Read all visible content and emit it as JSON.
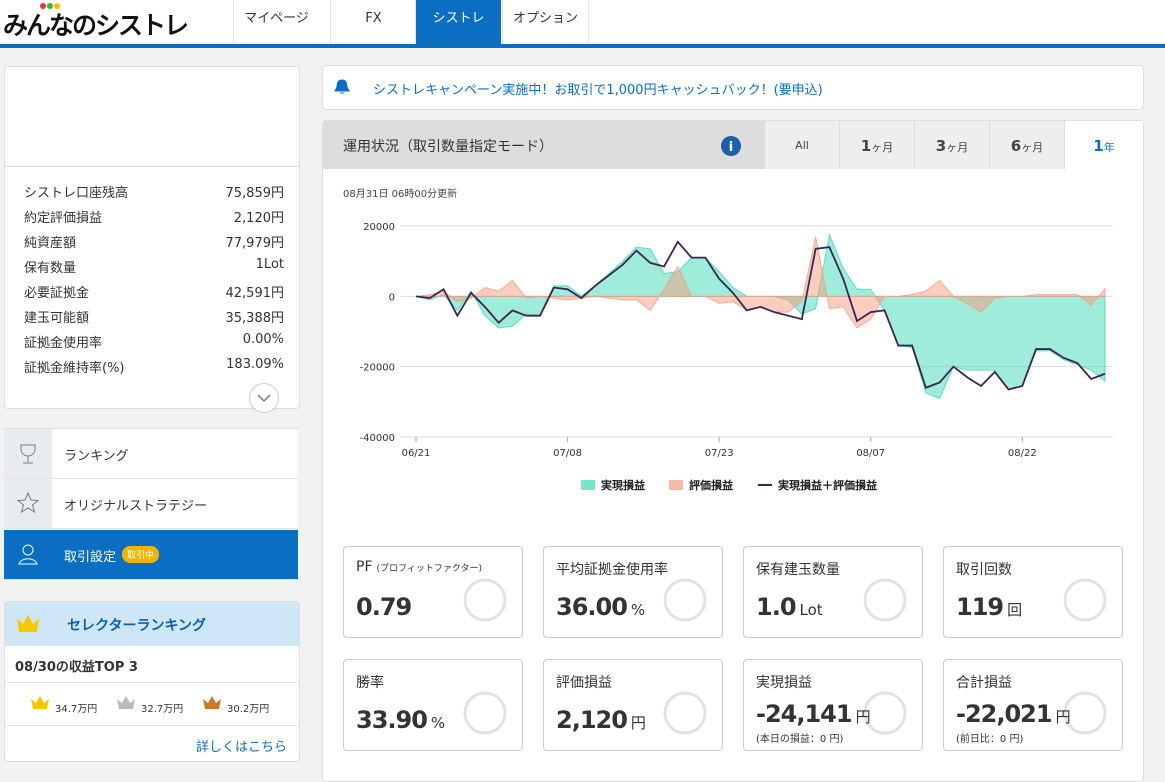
{
  "header": {
    "logo": "みんなのシストレ",
    "nav": [
      "マイページ",
      "FX",
      "シストレ",
      "オプション"
    ]
  },
  "account": {
    "rows": [
      [
        "シストレ口座残高",
        "75,859円"
      ],
      [
        "約定評価損益",
        "2,120円"
      ],
      [
        "純資産額",
        "77,979円"
      ],
      [
        "保有数量",
        "1Lot"
      ],
      [
        "必要証拠金",
        "42,591円"
      ],
      [
        "建玉可能額",
        "35,388円"
      ],
      [
        "証拠金使用率",
        "0.00%"
      ],
      [
        "証拠金維持率(%)",
        "183.09%"
      ]
    ]
  },
  "menu": {
    "items": [
      "ランキング",
      "オリジナルストラテジー",
      "取引設定"
    ],
    "badge": "取引中"
  },
  "selector": {
    "title": "セレクターランキング",
    "subtitle": "08/30の収益TOP 3",
    "prizes": [
      "34.7万円",
      "32.7万円",
      "30.2万円"
    ],
    "link": "詳しくはこちら"
  },
  "notice": "シストレキャンペーン実施中！お取引で1,000円キャッシュバック！(要申込)",
  "panel": {
    "title": "運用状況（取引数量指定モード）",
    "tabs": [
      {
        "num": "All"
      },
      {
        "num": "1",
        "unit": "ヶ月"
      },
      {
        "num": "3",
        "unit": "ヶ月"
      },
      {
        "num": "6",
        "unit": "ヶ月"
      },
      {
        "num": "1",
        "unit": "年"
      }
    ]
  },
  "chart_data": {
    "type": "area",
    "subtitle": "08月31日 06時00分更新",
    "categories": [
      "06/21",
      null,
      null,
      null,
      null,
      null,
      null,
      null,
      null,
      null,
      null,
      "07/08",
      null,
      null,
      null,
      null,
      null,
      null,
      null,
      null,
      null,
      null,
      "07/23",
      null,
      null,
      null,
      null,
      null,
      null,
      null,
      null,
      null,
      null,
      "08/07",
      null,
      null,
      null,
      null,
      null,
      null,
      null,
      null,
      null,
      null,
      "08/22",
      null,
      null,
      null,
      null,
      null,
      null
    ],
    "ylim": [
      -40000,
      20000
    ],
    "yticks": [
      -40000,
      -20000,
      0,
      20000
    ],
    "grid": true,
    "series": [
      {
        "name": "実現損益",
        "color": "#3fd9b6",
        "values": [
          0,
          -1000,
          500,
          -4000,
          1500,
          -5500,
          -9000,
          -8500,
          -5000,
          -5500,
          3000,
          3000,
          0,
          3000,
          6500,
          10000,
          14000,
          13500,
          6500,
          7000,
          11000,
          11000,
          7000,
          2500,
          0,
          0,
          0,
          -1000,
          -5000,
          -3500,
          17500,
          8000,
          2000,
          2000,
          -4000,
          -14000,
          -14500,
          -27500,
          -29000,
          -20000,
          -21000,
          -21000,
          -21000,
          -26500,
          -25500,
          -15500,
          -15500,
          -18000,
          -19500,
          -21000,
          -24141
        ]
      },
      {
        "name": "評価損益",
        "color": "#f59c80",
        "values": [
          0,
          500,
          1500,
          -1500,
          -500,
          2500,
          1500,
          4500,
          -500,
          0,
          -500,
          -1000,
          -500,
          0,
          -500,
          -1000,
          -1000,
          -4000,
          2000,
          8500,
          0,
          0,
          -2000,
          -1500,
          -4000,
          -3000,
          -4500,
          -4500,
          -1500,
          17000,
          -3500,
          -3000,
          -9000,
          -6500,
          0,
          0,
          500,
          1500,
          4500,
          0,
          -2000,
          -4500,
          -500,
          0,
          0,
          500,
          500,
          500,
          500,
          -2500,
          2120
        ]
      },
      {
        "name": "実現損益＋評価損益",
        "color": "#3b2556",
        "line": true,
        "values": [
          0,
          -500,
          2000,
          -5500,
          1000,
          -3000,
          -7500,
          -4000,
          -5500,
          -5500,
          2500,
          2000,
          -500,
          3000,
          6000,
          9000,
          13000,
          9500,
          8500,
          15500,
          11000,
          11000,
          5000,
          1000,
          -4000,
          -3000,
          -4500,
          -5500,
          -6500,
          13500,
          14000,
          5000,
          -7000,
          -4500,
          -4000,
          -14000,
          -14000,
          -26000,
          -24500,
          -20000,
          -23000,
          -25500,
          -21500,
          -26500,
          -25500,
          -15000,
          -15000,
          -17500,
          -19000,
          -23500,
          -22021
        ]
      }
    ]
  },
  "stats": [
    {
      "label": "PF",
      "sub": "(プロフィットファクター)",
      "value": "0.79"
    },
    {
      "label": "平均証拠金使用率",
      "value": "36.00",
      "unit": "%"
    },
    {
      "label": "保有建玉数量",
      "value": "1.0",
      "unit": "Lot"
    },
    {
      "label": "取引回数",
      "value": "119",
      "unit": "回"
    },
    {
      "label": "勝率",
      "value": "33.90",
      "unit": "%"
    },
    {
      "label": "評価損益",
      "value": "2,120",
      "unit": "円"
    },
    {
      "label": "実現損益",
      "value": "-24,141",
      "unit": "円",
      "note": "(本日の損益：0 円)"
    },
    {
      "label": "合計損益",
      "value": "-22,021",
      "unit": "円",
      "note": "(前日比：0 円)"
    }
  ]
}
